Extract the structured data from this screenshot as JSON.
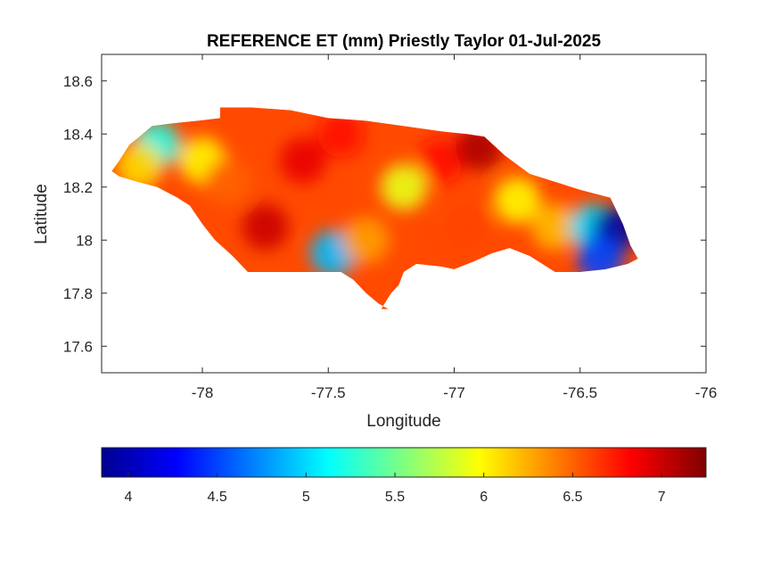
{
  "chart_data": {
    "type": "heatmap",
    "title": "REFERENCE ET (mm) Priestly Taylor 01-Jul-2025",
    "xlabel": "Longitude",
    "ylabel": "Latitude",
    "xlim": [
      -78.4,
      -76
    ],
    "ylim": [
      17.5,
      18.7
    ],
    "xticks": [
      -78,
      -77.5,
      -77,
      -76.5,
      -76
    ],
    "yticks": [
      17.6,
      17.8,
      18,
      18.2,
      18.4,
      18.6
    ],
    "xtick_labels": [
      "-78",
      "-77.5",
      "-77",
      "-76.5",
      "-76"
    ],
    "ytick_labels": [
      "17.6",
      "17.8",
      "18",
      "18.2",
      "18.4",
      "18.6"
    ],
    "colormap": "jet",
    "colorbar": {
      "orientation": "horizontal",
      "placement": "bottom",
      "range": [
        3.85,
        7.25
      ],
      "ticks": [
        4,
        4.5,
        5,
        5.5,
        6,
        6.5,
        7
      ],
      "tick_labels": [
        "4",
        "4.5",
        "5",
        "5.5",
        "6",
        "6.5",
        "7"
      ]
    },
    "region_outline": [
      [
        -78.36,
        18.26
      ],
      [
        -78.33,
        18.3
      ],
      [
        -78.29,
        18.36
      ],
      [
        -78.25,
        18.39
      ],
      [
        -78.2,
        18.43
      ],
      [
        -78.12,
        18.44
      ],
      [
        -78.02,
        18.45
      ],
      [
        -77.93,
        18.46
      ],
      [
        -77.93,
        18.5
      ],
      [
        -77.8,
        18.5
      ],
      [
        -77.65,
        18.49
      ],
      [
        -77.5,
        18.46
      ],
      [
        -77.35,
        18.45
      ],
      [
        -77.2,
        18.43
      ],
      [
        -77.05,
        18.41
      ],
      [
        -76.95,
        18.4
      ],
      [
        -76.88,
        18.39
      ],
      [
        -76.8,
        18.32
      ],
      [
        -76.7,
        18.25
      ],
      [
        -76.6,
        18.22
      ],
      [
        -76.5,
        18.19
      ],
      [
        -76.38,
        18.16
      ],
      [
        -76.33,
        18.06
      ],
      [
        -76.3,
        17.98
      ],
      [
        -76.27,
        17.93
      ],
      [
        -76.31,
        17.91
      ],
      [
        -76.4,
        17.89
      ],
      [
        -76.5,
        17.88
      ],
      [
        -76.6,
        17.88
      ],
      [
        -76.7,
        17.94
      ],
      [
        -76.78,
        17.97
      ],
      [
        -76.85,
        17.95
      ],
      [
        -76.92,
        17.92
      ],
      [
        -77.0,
        17.89
      ],
      [
        -77.05,
        17.9
      ],
      [
        -77.15,
        17.91
      ],
      [
        -77.2,
        17.88
      ],
      [
        -77.22,
        17.83
      ],
      [
        -77.25,
        17.8
      ],
      [
        -77.27,
        17.77
      ],
      [
        -77.29,
        17.74
      ],
      [
        -77.26,
        17.74
      ],
      [
        -77.3,
        17.76
      ],
      [
        -77.35,
        17.8
      ],
      [
        -77.4,
        17.85
      ],
      [
        -77.45,
        17.88
      ],
      [
        -77.55,
        17.88
      ],
      [
        -77.65,
        17.88
      ],
      [
        -77.75,
        17.88
      ],
      [
        -77.82,
        17.88
      ],
      [
        -77.88,
        17.94
      ],
      [
        -77.95,
        18.0
      ],
      [
        -78.0,
        18.06
      ],
      [
        -78.05,
        18.13
      ],
      [
        -78.1,
        18.16
      ],
      [
        -78.18,
        18.2
      ],
      [
        -78.26,
        18.22
      ],
      [
        -78.33,
        18.24
      ]
    ],
    "value_regions": [
      {
        "lon": -78.18,
        "lat": 18.36,
        "value": 5.2
      },
      {
        "lon": -78.25,
        "lat": 18.28,
        "value": 6.1
      },
      {
        "lon": -78.0,
        "lat": 18.3,
        "value": 6.0
      },
      {
        "lon": -77.9,
        "lat": 18.22,
        "value": 6.5
      },
      {
        "lon": -77.75,
        "lat": 18.05,
        "value": 7.0
      },
      {
        "lon": -77.6,
        "lat": 18.3,
        "value": 6.9
      },
      {
        "lon": -77.45,
        "lat": 18.4,
        "value": 6.8
      },
      {
        "lon": -77.48,
        "lat": 17.95,
        "value": 4.9
      },
      {
        "lon": -77.35,
        "lat": 18.0,
        "value": 6.3
      },
      {
        "lon": -77.2,
        "lat": 18.2,
        "value": 5.9
      },
      {
        "lon": -77.05,
        "lat": 18.3,
        "value": 6.8
      },
      {
        "lon": -76.95,
        "lat": 18.05,
        "value": 6.6
      },
      {
        "lon": -76.9,
        "lat": 18.35,
        "value": 7.1
      },
      {
        "lon": -76.75,
        "lat": 18.15,
        "value": 6.0
      },
      {
        "lon": -76.6,
        "lat": 18.05,
        "value": 6.2
      },
      {
        "lon": -76.45,
        "lat": 18.05,
        "value": 5.0
      },
      {
        "lon": -76.36,
        "lat": 18.04,
        "value": 3.9
      },
      {
        "lon": -76.42,
        "lat": 17.93,
        "value": 4.5
      }
    ]
  }
}
